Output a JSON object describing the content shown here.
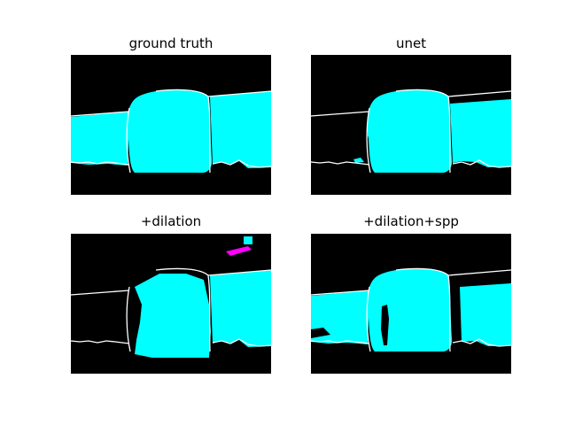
{
  "figure": {
    "panels": [
      {
        "title": "ground truth",
        "variant": "gt"
      },
      {
        "title": "unet",
        "variant": "unet"
      },
      {
        "title": "+dilation",
        "variant": "dil"
      },
      {
        "title": "+dilation+spp",
        "variant": "spp"
      }
    ]
  },
  "colors": {
    "background": "#000000",
    "region": "#00ffff",
    "outline": "#ffffff",
    "artifact": "#ff00ff"
  }
}
